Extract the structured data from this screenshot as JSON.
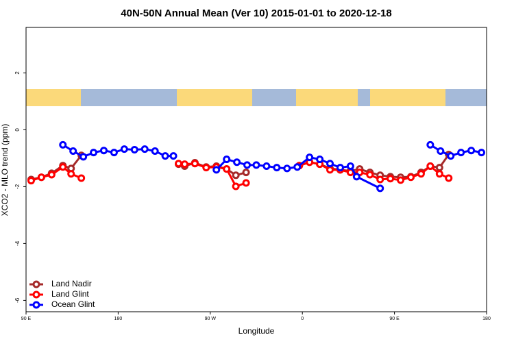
{
  "chart_data": {
    "type": "line",
    "title": "40N-50N Annual Mean (Ver 10)   2015-01-01 to 2020-12-18",
    "xlabel": "Longitude",
    "ylabel": "XCO2 - MLO trend (ppm)",
    "xlim": [
      90,
      540
    ],
    "ylim": [
      -6.4,
      3.6
    ],
    "xticks": [
      {
        "value": 90,
        "label": "90 E"
      },
      180,
      {
        "value": 270,
        "label": "90 W"
      },
      {
        "value": 360,
        "label": "0"
      },
      {
        "value": 450,
        "label": "90 E"
      },
      {
        "value": 540,
        "label": "180"
      }
    ],
    "yticks": [
      -6,
      -4,
      -2,
      0,
      2
    ],
    "legend": "bottomleft",
    "series": [
      {
        "name": "Land Nadir",
        "color": "#a52a2a",
        "x": [
          95,
          105,
          115,
          126,
          134,
          144,
          null,
          239,
          245,
          255,
          266,
          276,
          286,
          295,
          305,
          null,
          357,
          367,
          377,
          387,
          397,
          407,
          416,
          426,
          436,
          446,
          456,
          466,
          476,
          485,
          494,
          503
        ],
        "values": [
          -1.75,
          -1.67,
          -1.53,
          -1.26,
          -1.36,
          -0.9,
          null,
          -1.21,
          -1.28,
          -1.16,
          -1.31,
          -1.28,
          -1.38,
          -1.6,
          -1.5,
          null,
          -1.26,
          -1.14,
          -1.21,
          -1.36,
          -1.41,
          -1.45,
          -1.38,
          -1.5,
          -1.6,
          -1.65,
          -1.67,
          -1.65,
          -1.5,
          -1.28,
          -1.33,
          -0.87
        ]
      },
      {
        "name": "Land Glint",
        "color": "#ff0000",
        "x": [
          95,
          105,
          115,
          126,
          134,
          144,
          null,
          239,
          245,
          255,
          266,
          276,
          286,
          295,
          305,
          null,
          357,
          367,
          377,
          387,
          397,
          407,
          416,
          426,
          436,
          446,
          456,
          466,
          476,
          485,
          494,
          503
        ],
        "values": [
          -1.79,
          -1.67,
          -1.58,
          -1.31,
          -1.55,
          -1.7,
          null,
          -1.19,
          -1.21,
          -1.19,
          -1.33,
          -1.31,
          -1.38,
          -1.99,
          -1.87,
          null,
          -1.26,
          -1.14,
          -1.21,
          -1.41,
          -1.41,
          -1.5,
          -1.5,
          -1.58,
          -1.75,
          -1.72,
          -1.77,
          -1.67,
          -1.55,
          -1.28,
          -1.55,
          -1.7
        ]
      },
      {
        "name": "Ocean Glint",
        "color": "#0000ff",
        "x": [
          126,
          136,
          146,
          156,
          166,
          176,
          186,
          196,
          206,
          216,
          226,
          234,
          null,
          276,
          286,
          296,
          306,
          315,
          325,
          335,
          345,
          355,
          367,
          377,
          387,
          397,
          407,
          413,
          436,
          null,
          485,
          495,
          505,
          515,
          525,
          535
        ],
        "values": [
          -0.53,
          -0.75,
          -0.95,
          -0.8,
          -0.73,
          -0.8,
          -0.68,
          -0.7,
          -0.68,
          -0.75,
          -0.92,
          -0.92,
          null,
          -1.41,
          -1.04,
          -1.14,
          -1.24,
          -1.24,
          -1.28,
          -1.33,
          -1.36,
          -1.31,
          -0.97,
          -1.04,
          -1.19,
          -1.33,
          -1.28,
          -1.65,
          -2.06,
          null,
          -0.53,
          -0.75,
          -0.92,
          -0.8,
          -0.73,
          -0.8
        ]
      }
    ]
  }
}
